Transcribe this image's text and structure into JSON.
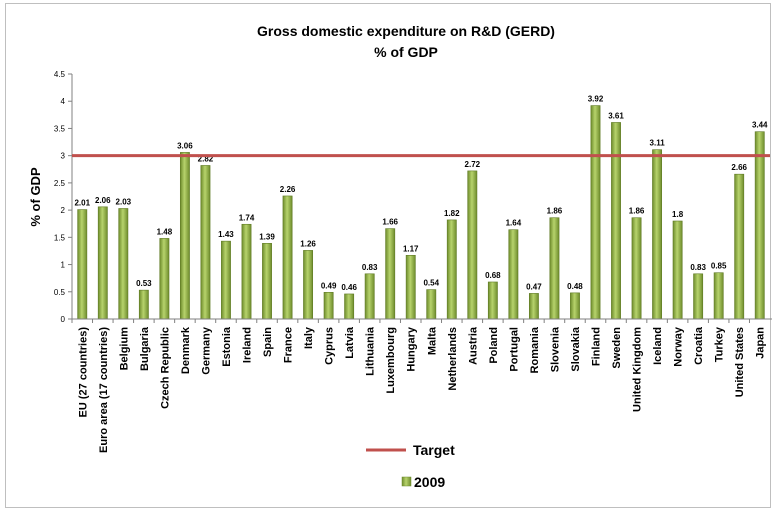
{
  "chart_data": {
    "type": "bar",
    "title": "Gross domestic expenditure on R&D (GERD)",
    "subtitle": "% of GDP",
    "ylabel": "% of GDP",
    "xlabel": "",
    "ylim": [
      0,
      4.5
    ],
    "yticks": [
      "0",
      "0.5",
      "1",
      "1.5",
      "2",
      "2.5",
      "3",
      "3.5",
      "4",
      "4.5"
    ],
    "categories": [
      "EU (27 countries)",
      "Euro area (17 countries)",
      "Belgium",
      "Bulgaria",
      "Czech Republic",
      "Denmark",
      "Germany",
      "Estonia",
      "Ireland",
      "Spain",
      "France",
      "Italy",
      "Cyprus",
      "Latvia",
      "Lithuania",
      "Luxembourg",
      "Hungary",
      "Malta",
      "Netherlands",
      "Austria",
      "Poland",
      "Portugal",
      "Romania",
      "Slovenia",
      "Slovakia",
      "Finland",
      "Sweden",
      "United Kingdom",
      "Iceland",
      "Norway",
      "Croatia",
      "Turkey",
      "United States",
      "Japan"
    ],
    "series": [
      {
        "name": "2009",
        "values": [
          2.01,
          2.06,
          2.03,
          0.53,
          1.48,
          3.06,
          2.82,
          1.43,
          1.74,
          1.39,
          2.26,
          1.26,
          0.49,
          0.46,
          0.83,
          1.66,
          1.17,
          0.54,
          1.82,
          2.72,
          0.68,
          1.64,
          0.47,
          1.86,
          0.48,
          3.92,
          3.61,
          1.86,
          3.11,
          1.8,
          0.83,
          0.85,
          2.66,
          3.44
        ],
        "labels": [
          "2.01",
          "2.06",
          "2.03",
          "0.53",
          "1.48",
          "3.06",
          "2.82",
          "1.43",
          "1.74",
          "1.39",
          "2.26",
          "1.26",
          "0.49",
          "0.46",
          "0.83",
          "1.66",
          "1.17",
          "0.54",
          "1.82",
          "2.72",
          "0.68",
          "1.64",
          "0.47",
          "1.86",
          "0.48",
          "3.92",
          "3.61",
          "1.86",
          "3.11",
          "1.8",
          "0.83",
          "0.85",
          "2.66",
          "3.44"
        ]
      }
    ],
    "target": {
      "name": "Target",
      "value": 3,
      "color": "#c0504d"
    },
    "bar_color": "#9bbb59",
    "grid": false,
    "legend": "bottom"
  }
}
